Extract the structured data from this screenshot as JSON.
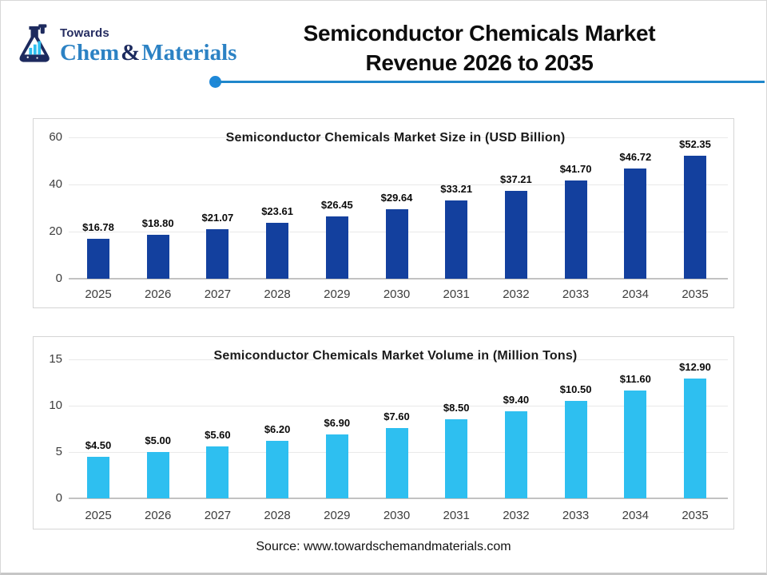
{
  "header": {
    "logo": {
      "towards": "Towards",
      "chem": "Chem",
      "ampersand": "&",
      "materials": "Materials"
    },
    "title_line1": "Semiconductor Chemicals Market",
    "title_line2": "Revenue 2026 to 2035"
  },
  "footer": {
    "source": "Source: www.towardschemandmaterials.com"
  },
  "colors": {
    "bar_navy": "#13409E",
    "bar_cyan": "#2EBFF0",
    "accent_rule_blue": "#1F87CB",
    "logo_navy": "#1D2A5E",
    "logo_blue": "#2C82C4"
  },
  "chart_data": [
    {
      "type": "bar",
      "title": "Semiconductor Chemicals Market Size in (USD Billion)",
      "categories": [
        "2025",
        "2026",
        "2027",
        "2028",
        "2029",
        "2030",
        "2031",
        "2032",
        "2033",
        "2034",
        "2035"
      ],
      "values": [
        16.78,
        18.8,
        21.07,
        23.61,
        26.45,
        29.64,
        33.21,
        37.21,
        41.7,
        46.72,
        52.35
      ],
      "labels": [
        "$16.78",
        "$18.80",
        "$21.07",
        "$23.61",
        "$26.45",
        "$29.64",
        "$33.21",
        "$37.21",
        "$41.70",
        "$46.72",
        "$52.35"
      ],
      "xlabel": "",
      "ylabel": "",
      "ylim": [
        0,
        60
      ],
      "yticks": [
        0,
        20,
        40,
        60
      ],
      "grid": true,
      "legend": "none",
      "bar_color": "#13409E"
    },
    {
      "type": "bar",
      "title": "Semiconductor Chemicals Market Volume in (Million Tons)",
      "categories": [
        "2025",
        "2026",
        "2027",
        "2028",
        "2029",
        "2030",
        "2031",
        "2032",
        "2033",
        "2034",
        "2035"
      ],
      "values": [
        4.5,
        5.0,
        5.6,
        6.2,
        6.9,
        7.6,
        8.5,
        9.4,
        10.5,
        11.6,
        12.9
      ],
      "labels": [
        "$4.50",
        "$5.00",
        "$5.60",
        "$6.20",
        "$6.90",
        "$7.60",
        "$8.50",
        "$9.40",
        "$10.50",
        "$11.60",
        "$12.90"
      ],
      "xlabel": "",
      "ylabel": "",
      "ylim": [
        0,
        15
      ],
      "yticks": [
        0,
        5,
        10,
        15
      ],
      "grid": true,
      "legend": "none",
      "bar_color": "#2EBFF0"
    }
  ]
}
